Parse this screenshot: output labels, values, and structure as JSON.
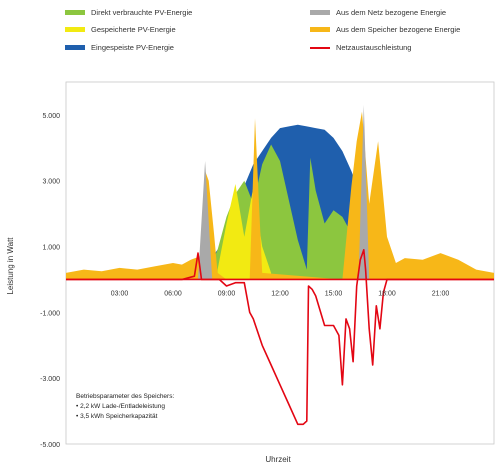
{
  "legend": [
    {
      "label": "Direkt verbrauchte PV-Energie",
      "color": "#8cc63f",
      "kind": "area"
    },
    {
      "label": "Gespeicherte PV-Energie",
      "color": "#f2ea12",
      "kind": "area"
    },
    {
      "label": "Eingespeiste PV-Energie",
      "color": "#1f5fad",
      "kind": "area"
    },
    {
      "label": "Aus dem Netz bezogene Energie",
      "color": "#a9a9a9",
      "kind": "area"
    },
    {
      "label": "Aus dem Speicher bezogene Energie",
      "color": "#f7b718",
      "kind": "area"
    },
    {
      "label": "Netzaustauschleistung",
      "color": "#e30613",
      "kind": "line"
    }
  ],
  "notes": {
    "title": "Betriebsparameter des Speichers:",
    "items": [
      "• 2,2 kW Lade-/Entladeleistung",
      "• 3,5 kWh Speicherkapazität"
    ]
  },
  "chart_data": {
    "type": "area",
    "xlabel": "Uhrzeit",
    "ylabel": "Leistung in Watt",
    "xlim": [
      0,
      24
    ],
    "ylim": [
      -5000,
      6000
    ],
    "x_tick_labels": [
      "03:00",
      "06:00",
      "09:00",
      "12:00",
      "15:00",
      "18:00",
      "21:00"
    ],
    "x_ticks": [
      3,
      6,
      9,
      12,
      15,
      18,
      21
    ],
    "y_tick_labels": [
      "5.000",
      "3.000",
      "1.000",
      "-1.000",
      "-3.000",
      "-5.000"
    ],
    "y_ticks": [
      5000,
      3000,
      1000,
      -1000,
      -3000,
      -5000
    ],
    "grid": false,
    "series": [
      {
        "name": "Eingespeiste PV-Energie",
        "color": "#1f5fad",
        "x": [
          6.5,
          7.5,
          8.5,
          9.5,
          10.5,
          11.5,
          12.0,
          12.5,
          13.0,
          13.5,
          14.0,
          14.5,
          15.0,
          15.5,
          16.0,
          16.5,
          17.0,
          17.5,
          18.0,
          18.5,
          19.0
        ],
        "values": [
          0,
          200,
          900,
          2200,
          3500,
          4300,
          4600,
          4650,
          4700,
          4650,
          4600,
          4550,
          4300,
          3900,
          3300,
          2600,
          1800,
          1100,
          500,
          150,
          0
        ]
      },
      {
        "name": "Direkt verbrauchte PV-Energie",
        "color": "#8cc63f",
        "x": [
          7.5,
          8.0,
          8.5,
          9.0,
          9.5,
          10.0,
          10.5,
          11.0,
          11.5,
          12.0,
          12.5,
          13.0,
          13.5,
          13.7,
          14.0,
          14.5,
          15.0,
          15.5,
          16.0,
          16.5,
          17.0,
          17.5,
          18.0,
          18.5
        ],
        "values": [
          0,
          300,
          900,
          1900,
          2600,
          3000,
          2300,
          3500,
          4100,
          3600,
          2400,
          1200,
          300,
          3700,
          2700,
          1700,
          2100,
          1900,
          1400,
          2400,
          1800,
          1100,
          500,
          0
        ]
      },
      {
        "name": "Gespeicherte PV-Energie",
        "color": "#f2ea12",
        "x": [
          8.5,
          9.0,
          9.5,
          10.0,
          10.5,
          11.0,
          11.5
        ],
        "values": [
          300,
          1700,
          2900,
          1300,
          2800,
          1000,
          200
        ]
      },
      {
        "name": "Aus dem Speicher bezogene Energie",
        "color": "#f7b718",
        "x": [
          0.0,
          1.0,
          2.0,
          3.0,
          4.0,
          5.0,
          6.0,
          6.5,
          7.0,
          7.5,
          7.8,
          8.0,
          8.3,
          8.5,
          9.0,
          10.3,
          10.6,
          11.0,
          15.5,
          16.0,
          16.3,
          16.6,
          17.0,
          17.5,
          18.0,
          18.5,
          19.0,
          20.0,
          21.0,
          22.0,
          23.0,
          24.0
        ],
        "values": [
          200,
          300,
          250,
          350,
          300,
          400,
          500,
          450,
          600,
          700,
          3300,
          3000,
          1400,
          200,
          0,
          0,
          4900,
          200,
          0,
          2800,
          4200,
          5100,
          2300,
          4200,
          1300,
          500,
          650,
          600,
          800,
          600,
          300,
          200
        ]
      },
      {
        "name": "Aus dem Netz bezogene Energie",
        "color": "#a9a9a9",
        "x": [
          7.4,
          7.8,
          8.2,
          16.4,
          16.7,
          17.0
        ],
        "values": [
          0,
          3600,
          0,
          0,
          5300,
          0
        ]
      },
      {
        "name": "Netzaustauschleistung",
        "color": "#e30613",
        "x": [
          0.0,
          6.5,
          7.2,
          7.4,
          7.6,
          8.2,
          8.6,
          9.0,
          9.5,
          10.0,
          10.3,
          10.5,
          11.0,
          11.5,
          12.0,
          12.5,
          13.0,
          13.3,
          13.5,
          13.6,
          13.8,
          14.0,
          14.5,
          15.0,
          15.3,
          15.5,
          15.7,
          15.9,
          16.1,
          16.3,
          16.5,
          16.7,
          16.8,
          17.0,
          17.2,
          17.4,
          17.6,
          17.8,
          18.0,
          24.0
        ],
        "values": [
          0,
          0,
          100,
          800,
          0,
          0,
          0,
          -200,
          -100,
          -100,
          -1000,
          -1200,
          -2000,
          -2600,
          -3200,
          -3800,
          -4400,
          -4400,
          -4300,
          -200,
          -300,
          -500,
          -1400,
          -1400,
          -1700,
          -3200,
          -1200,
          -1500,
          -2500,
          -200,
          600,
          900,
          300,
          -1500,
          -2600,
          -800,
          -1500,
          -400,
          0,
          0
        ]
      }
    ]
  }
}
